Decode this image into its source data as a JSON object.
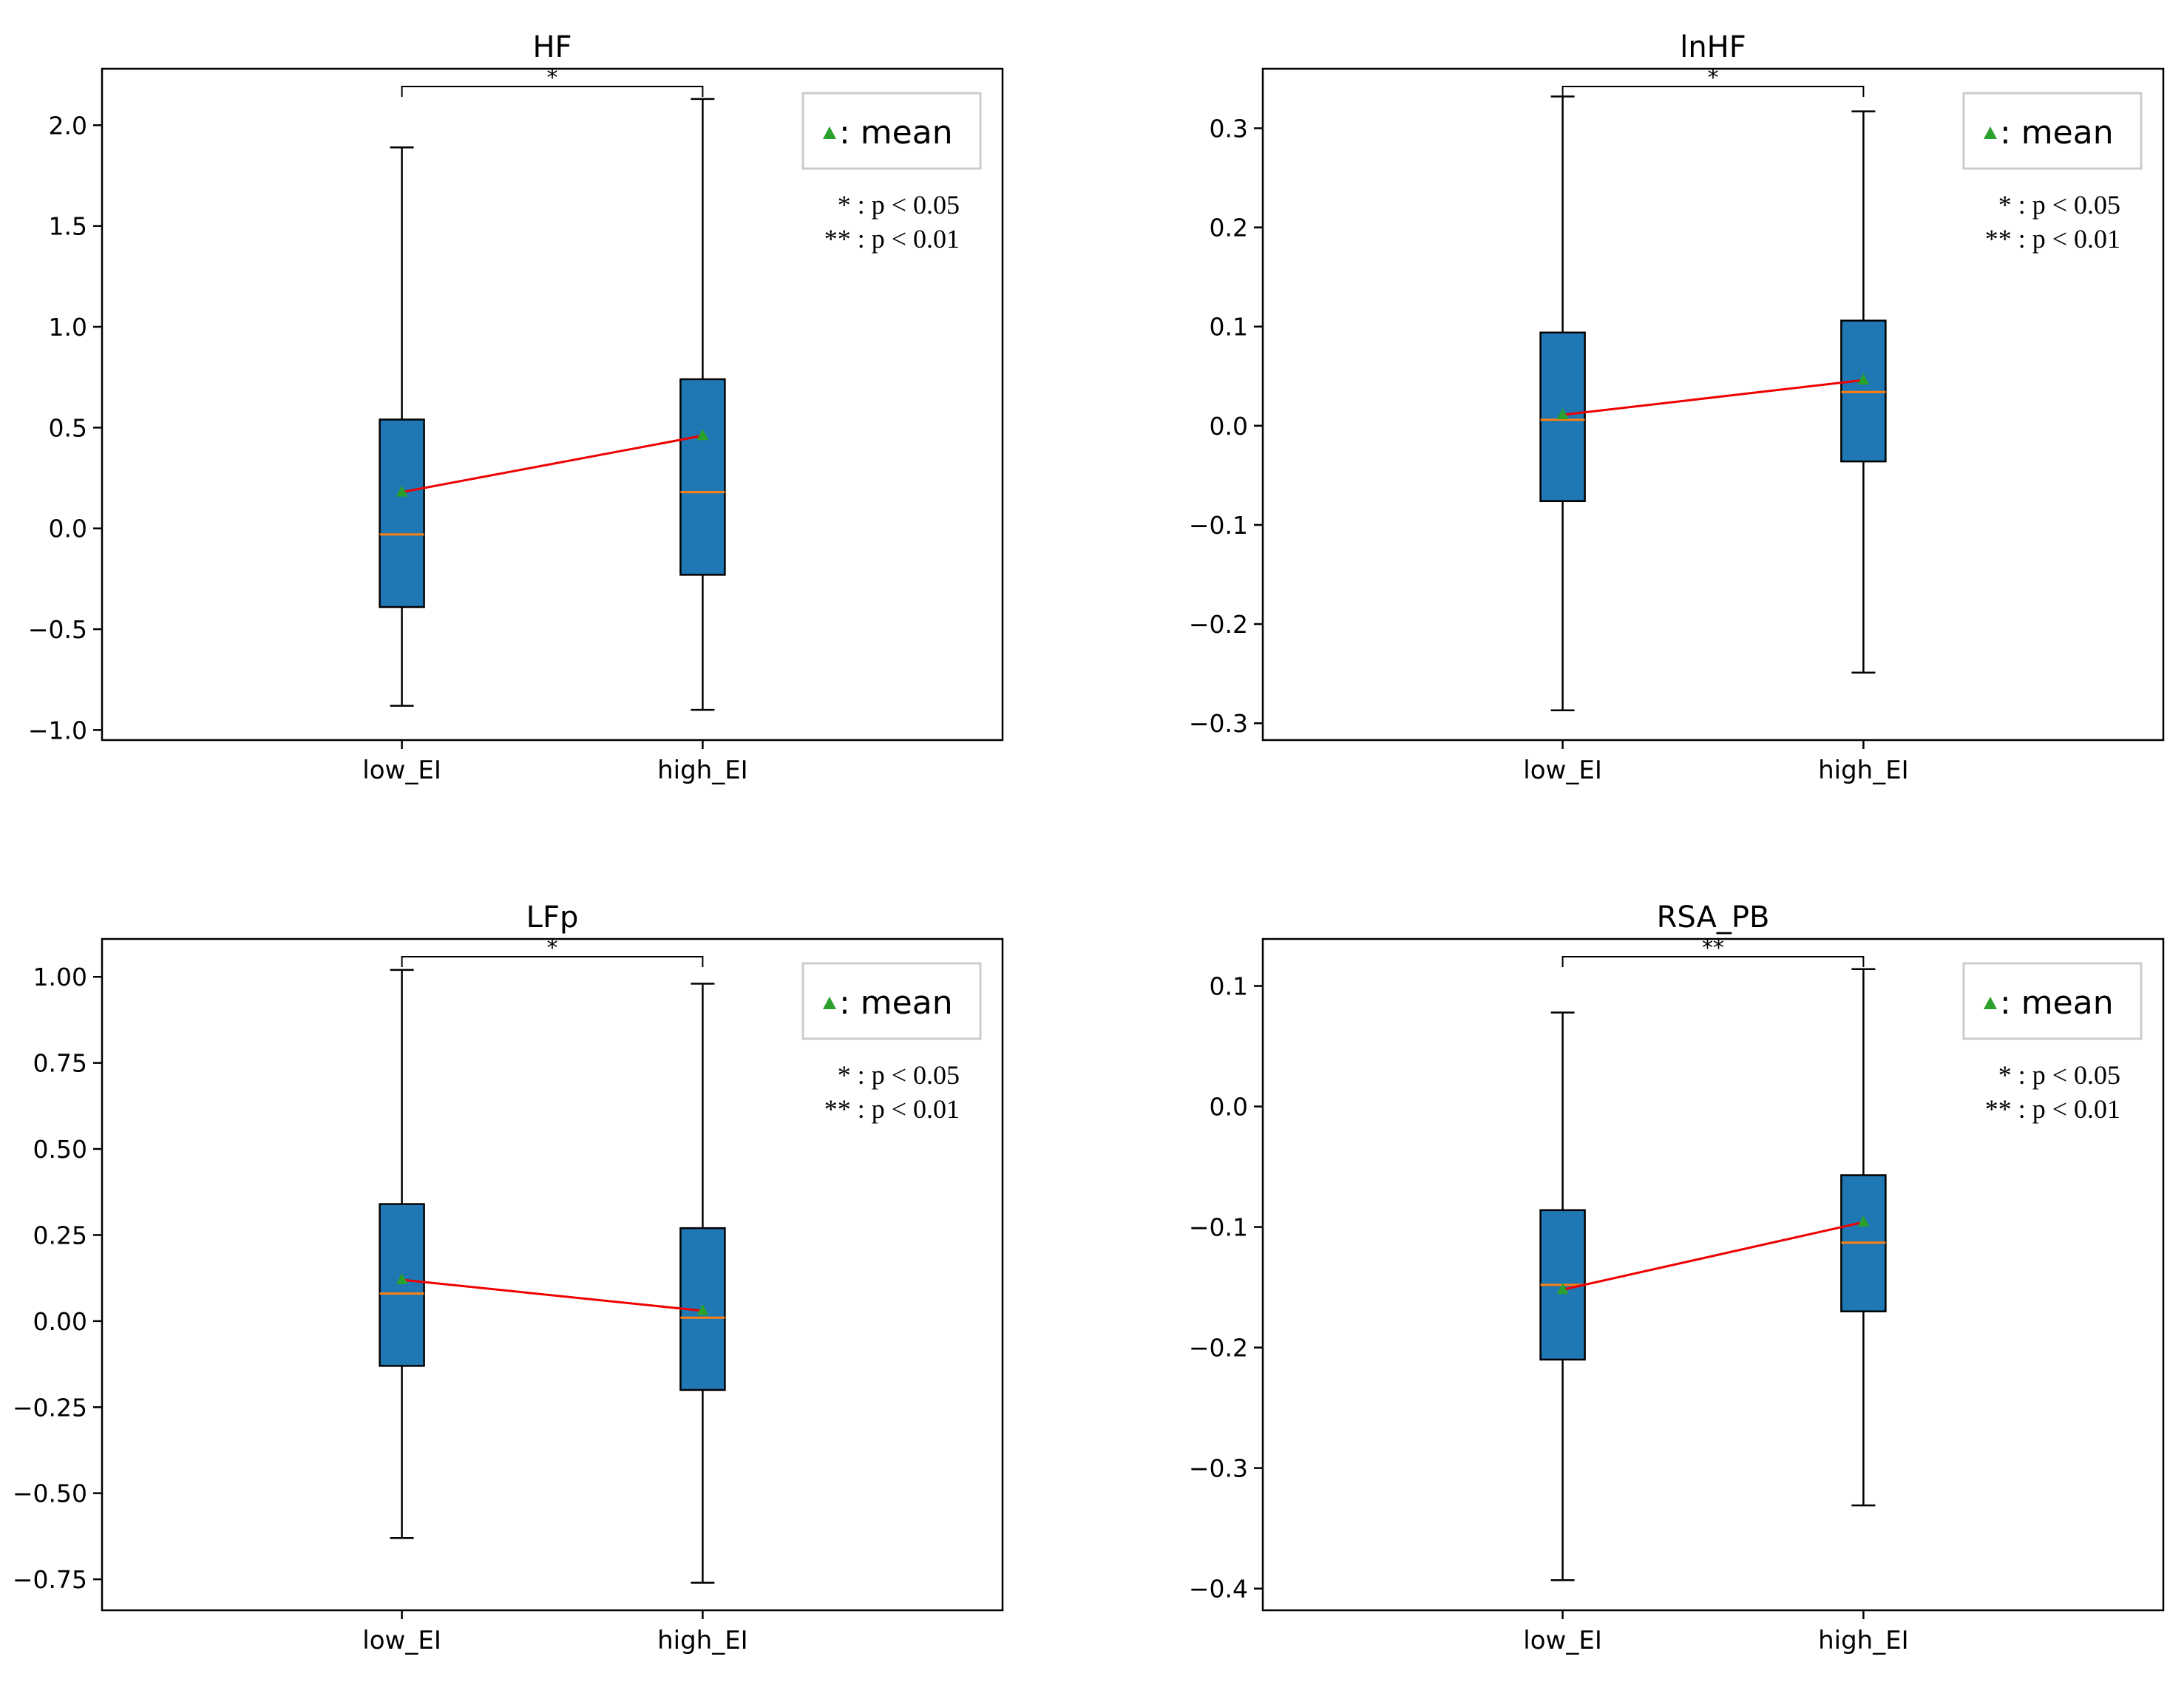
{
  "chart_data": [
    {
      "type": "box",
      "title": "HF",
      "xlabel": "",
      "ylabel": "",
      "categories": [
        "low_EI",
        "high_EI"
      ],
      "ylim": [
        -1.05,
        2.28
      ],
      "yticks": [
        -1.0,
        -0.5,
        0.0,
        0.5,
        1.0,
        1.5,
        2.0
      ],
      "ytick_labels": [
        "−1.0",
        "−0.5",
        "0.0",
        "0.5",
        "1.0",
        "1.5",
        "2.0"
      ],
      "boxes": [
        {
          "name": "low_EI",
          "whisker_low": -0.88,
          "q1": -0.39,
          "median": -0.03,
          "q3": 0.54,
          "whisker_high": 1.89,
          "mean": 0.18
        },
        {
          "name": "high_EI",
          "whisker_low": -0.9,
          "q1": -0.23,
          "median": 0.18,
          "q3": 0.74,
          "whisker_high": 2.13,
          "mean": 0.46
        }
      ],
      "significance": "*",
      "legend": {
        "label": ": mean",
        "position": "top-right"
      },
      "notes": [
        "* : p < 0.05",
        "** : p < 0.01"
      ]
    },
    {
      "type": "box",
      "title": "lnHF",
      "xlabel": "",
      "ylabel": "",
      "categories": [
        "low_EI",
        "high_EI"
      ],
      "ylim": [
        -0.317,
        0.36
      ],
      "yticks": [
        -0.3,
        -0.2,
        -0.1,
        0.0,
        0.1,
        0.2,
        0.3
      ],
      "ytick_labels": [
        "−0.3",
        "−0.2",
        "−0.1",
        "0.0",
        "0.1",
        "0.2",
        "0.3"
      ],
      "boxes": [
        {
          "name": "low_EI",
          "whisker_low": -0.287,
          "q1": -0.076,
          "median": 0.006,
          "q3": 0.094,
          "whisker_high": 0.332,
          "mean": 0.011
        },
        {
          "name": "high_EI",
          "whisker_low": -0.249,
          "q1": -0.036,
          "median": 0.034,
          "q3": 0.106,
          "whisker_high": 0.317,
          "mean": 0.046
        }
      ],
      "significance": "*",
      "legend": {
        "label": ": mean",
        "position": "top-right"
      },
      "notes": [
        "* : p < 0.05",
        "** : p < 0.01"
      ]
    },
    {
      "type": "box",
      "title": "LFp",
      "xlabel": "",
      "ylabel": "",
      "categories": [
        "low_EI",
        "high_EI"
      ],
      "ylim": [
        -0.84,
        1.11
      ],
      "yticks": [
        -0.75,
        -0.5,
        -0.25,
        0.0,
        0.25,
        0.5,
        0.75,
        1.0
      ],
      "ytick_labels": [
        "−0.75",
        "−0.50",
        "−0.25",
        "0.00",
        "0.25",
        "0.50",
        "0.75",
        "1.00"
      ],
      "boxes": [
        {
          "name": "low_EI",
          "whisker_low": -0.63,
          "q1": -0.13,
          "median": 0.08,
          "q3": 0.34,
          "whisker_high": 1.02,
          "mean": 0.12
        },
        {
          "name": "high_EI",
          "whisker_low": -0.76,
          "q1": -0.2,
          "median": 0.01,
          "q3": 0.27,
          "whisker_high": 0.98,
          "mean": 0.03
        }
      ],
      "significance": "*",
      "legend": {
        "label": ": mean",
        "position": "top-right"
      },
      "notes": [
        "* : p < 0.05",
        "** : p < 0.01"
      ]
    },
    {
      "type": "box",
      "title": "RSA_PB",
      "xlabel": "",
      "ylabel": "",
      "categories": [
        "low_EI",
        "high_EI"
      ],
      "ylim": [
        -0.418,
        0.139
      ],
      "yticks": [
        -0.4,
        -0.3,
        -0.2,
        -0.1,
        0.0,
        0.1
      ],
      "ytick_labels": [
        "−0.4",
        "−0.3",
        "−0.2",
        "−0.1",
        "0.0",
        "0.1"
      ],
      "boxes": [
        {
          "name": "low_EI",
          "whisker_low": -0.393,
          "q1": -0.21,
          "median": -0.148,
          "q3": -0.086,
          "whisker_high": 0.078,
          "mean": -0.152
        },
        {
          "name": "high_EI",
          "whisker_low": -0.331,
          "q1": -0.17,
          "median": -0.113,
          "q3": -0.057,
          "whisker_high": 0.114,
          "mean": -0.096
        }
      ],
      "significance": "**",
      "legend": {
        "label": ": mean",
        "position": "top-right"
      },
      "notes": [
        "* : p < 0.05",
        "** : p < 0.01"
      ]
    }
  ],
  "colors": {
    "box_fill": "#1f77b4",
    "median": "#ff7f0e",
    "mean_marker": "#2ca02c",
    "mean_line": "#ee0000",
    "axis": "#000000",
    "legend_border": "#cccccc"
  }
}
